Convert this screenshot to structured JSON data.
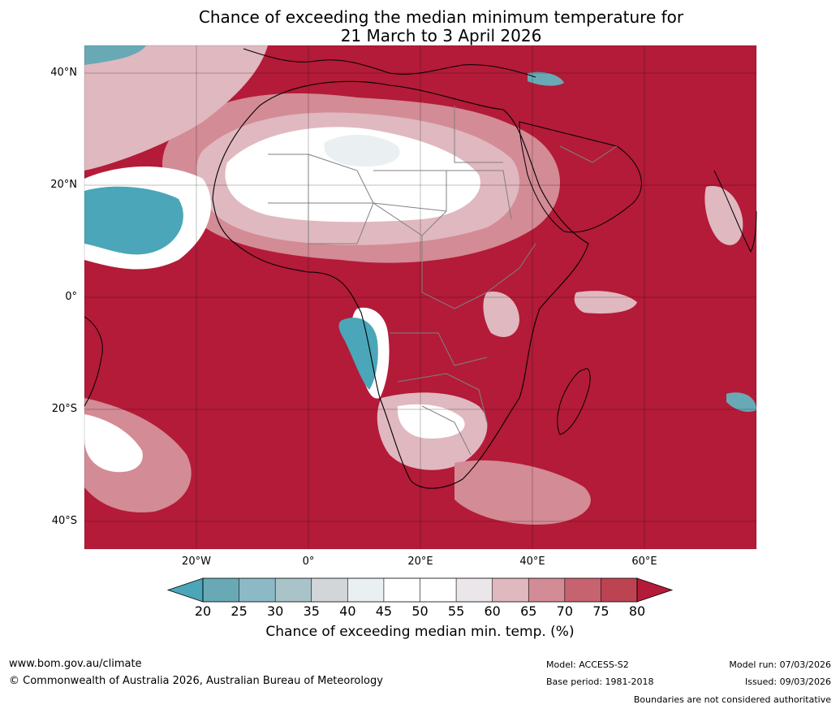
{
  "title": {
    "line1": "Chance of exceeding the median minimum temperature for",
    "line2": "21 March to 3 April 2026"
  },
  "map": {
    "lat_labels": [
      "40°N",
      "20°N",
      "0°",
      "20°S",
      "40°S"
    ],
    "lon_labels": [
      "20°W",
      "0°",
      "20°E",
      "40°E",
      "60°E"
    ],
    "dominant_color": "#b31b38"
  },
  "legend": {
    "ticks": [
      "20",
      "25",
      "30",
      "35",
      "40",
      "45",
      "50",
      "55",
      "60",
      "65",
      "70",
      "75",
      "80"
    ],
    "colors": [
      "#4aa6b8",
      "#69a9b6",
      "#8bb9c5",
      "#aac3c9",
      "#d2d6d9",
      "#eaeff1",
      "#ffffff",
      "#ffffff",
      "#ebe6e9",
      "#e0b8bf",
      "#d38b95",
      "#c6636f",
      "#bc4352",
      "#b31b38"
    ],
    "title": "Chance of exceeding median min. temp. (%)"
  },
  "footer": {
    "url": "www.bom.gov.au/climate",
    "copyright": "© Commonwealth of Australia 2026, Australian Bureau of Meteorology",
    "model": "Model: ACCESS-S2",
    "base_period": "Base period: 1981-2018",
    "model_run": "Model run: 07/03/2026",
    "issued": "Issued: 09/03/2026",
    "disclaimer": "Boundaries are not considered authoritative"
  }
}
